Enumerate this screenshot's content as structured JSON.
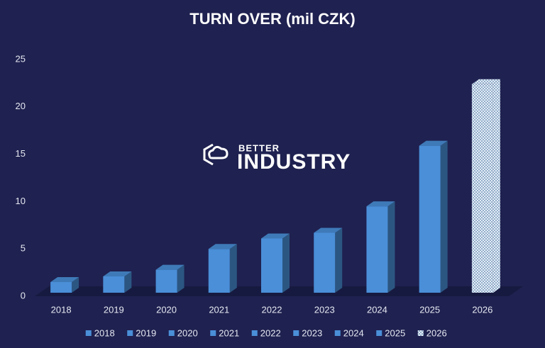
{
  "chart_data": {
    "type": "bar3d",
    "title": "TURN OVER (mil CZK)",
    "categories": [
      "2018",
      "2019",
      "2020",
      "2021",
      "2022",
      "2023",
      "2024",
      "2025",
      "2026"
    ],
    "values": [
      1.5,
      2.1,
      2.8,
      5.0,
      6.1,
      6.7,
      9.5,
      15.9,
      22.4
    ],
    "colors": [
      "#4a8fd8",
      "#4a8fd8",
      "#4a8fd8",
      "#4a8fd8",
      "#4a8fd8",
      "#4a8fd8",
      "#4a8fd8",
      "#4a8fd8",
      "#d6e4f2"
    ],
    "patterned": [
      false,
      false,
      false,
      false,
      false,
      false,
      false,
      false,
      true
    ],
    "ylim": [
      0,
      25
    ],
    "yticks": [
      0,
      5,
      10,
      15,
      20,
      25
    ],
    "annotations": [
      "BETTER",
      "INDUSTRY"
    ],
    "legend": "bottom"
  }
}
